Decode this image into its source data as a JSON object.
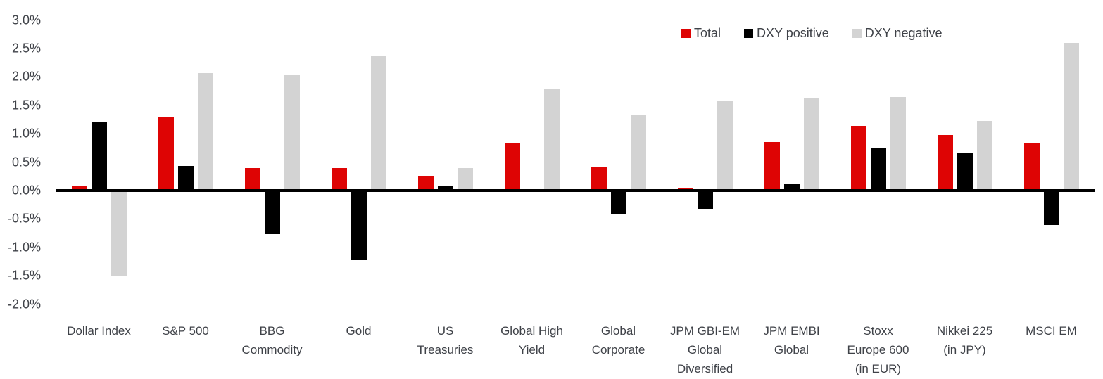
{
  "chart_data": {
    "type": "bar",
    "title": "",
    "xlabel": "",
    "ylabel": "",
    "grid": false,
    "legend_position": "top-right",
    "ylim": [
      -2.0,
      3.0
    ],
    "ytick_step": 0.5,
    "yticks": [
      "3.0%",
      "2.5%",
      "2.0%",
      "1.5%",
      "1.0%",
      "0.5%",
      "0.0%",
      "-0.5%",
      "-1.0%",
      "-1.5%",
      "-2.0%"
    ],
    "categories": [
      "Dollar Index",
      "S&P 500",
      "BBG\nCommodity",
      "Gold",
      "US\nTreasuries",
      "Global High\nYield",
      "Global\nCorporate",
      "JPM GBI-EM\nGlobal\nDiversified",
      "JPM EMBI\nGlobal",
      "Stoxx\nEurope 600\n(in EUR)",
      "Nikkei 225\n(in JPY)",
      "MSCI EM"
    ],
    "series": [
      {
        "name": "Total",
        "color": "#de0404",
        "values": [
          0.09,
          1.3,
          0.4,
          0.39,
          0.26,
          0.84,
          0.41,
          0.05,
          0.85,
          1.14,
          0.98,
          0.83
        ]
      },
      {
        "name": "DXY positive",
        "color": "#000000",
        "values": [
          1.2,
          0.43,
          -0.77,
          -1.23,
          0.09,
          0.0,
          -0.42,
          -0.32,
          0.11,
          0.76,
          0.66,
          -0.61
        ]
      },
      {
        "name": "DXY negative",
        "color": "#d3d3d3",
        "values": [
          -1.51,
          2.07,
          2.03,
          2.38,
          0.4,
          1.79,
          1.32,
          1.58,
          1.62,
          1.65,
          1.23,
          2.6
        ]
      }
    ],
    "colors": {
      "axis": "#000000",
      "text": "#3f4248",
      "background": "#ffffff"
    }
  }
}
